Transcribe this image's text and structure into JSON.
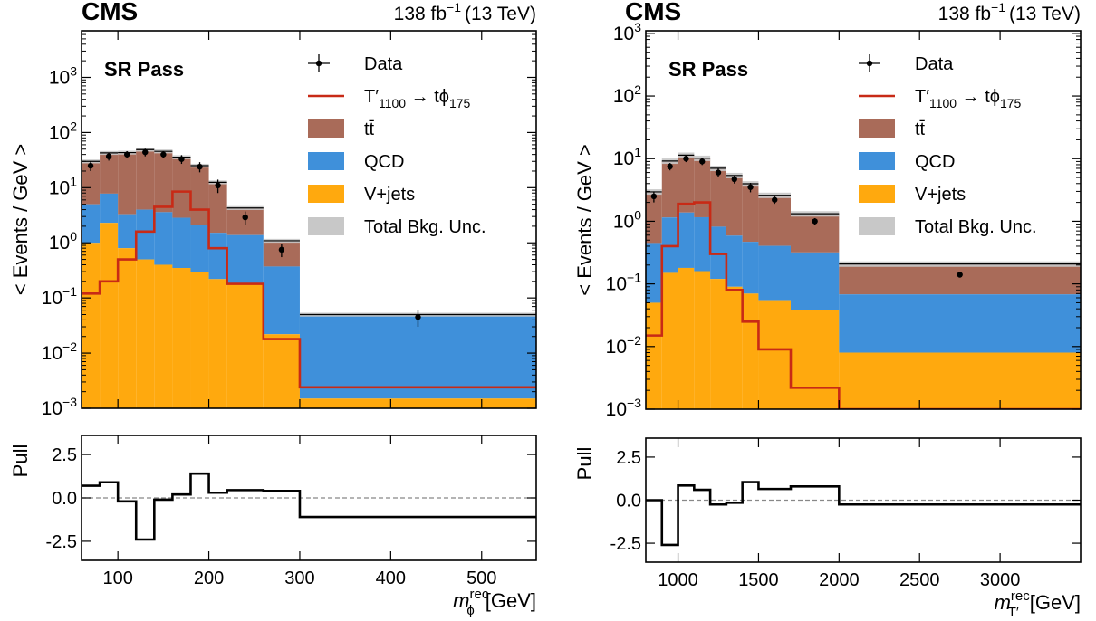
{
  "experiment": "CMS",
  "luminosity_label": "138 fb",
  "luminosity_exp": "−1",
  "energy_label": "(13 TeV)",
  "region_label": "SR Pass",
  "legend": [
    {
      "key": "data",
      "label": "Data"
    },
    {
      "key": "signal",
      "label_main": "T′",
      "label_sub": "1100",
      "label_arrow": " → tϕ",
      "label_sub2": "175"
    },
    {
      "key": "ttbar",
      "label": "tt̄"
    },
    {
      "key": "qcd",
      "label": "QCD"
    },
    {
      "key": "vjets",
      "label": "V+jets"
    },
    {
      "key": "unc",
      "label": "Total Bkg. Unc."
    }
  ],
  "colors": {
    "ttbar": "#a96b59",
    "qcd": "#3f90da",
    "vjets": "#ffa90e",
    "unc": "#c8c8c8",
    "signal": "#c82a16",
    "data": "#000000"
  },
  "chart_data": [
    {
      "type": "bar",
      "name": "left",
      "stacked": true,
      "log_y": true,
      "ylabel": "< Events / GeV >",
      "xlabel_sym": "m",
      "xlabel_sup": "rec",
      "xlabel_sub": "ϕ",
      "xlabel_unit": "[GeV]",
      "xlim": [
        60,
        560
      ],
      "ylim": [
        0.001,
        7000
      ],
      "yticks": [
        {
          "v": 0.001,
          "m": "10",
          "e": "−3"
        },
        {
          "v": 0.01,
          "m": "10",
          "e": "−2"
        },
        {
          "v": 0.1,
          "m": "10",
          "e": "−1"
        },
        {
          "v": 1,
          "m": "10",
          "e": "0"
        },
        {
          "v": 10,
          "m": "10",
          "e": "1"
        },
        {
          "v": 100,
          "m": "10",
          "e": "2"
        },
        {
          "v": 1000,
          "m": "10",
          "e": "3"
        }
      ],
      "xticks": [
        {
          "v": 100,
          "t": "100"
        },
        {
          "v": 200,
          "t": "200"
        },
        {
          "v": 300,
          "t": "300"
        },
        {
          "v": 400,
          "t": "400"
        },
        {
          "v": 500,
          "t": "500"
        }
      ],
      "bin_edges": [
        60,
        80,
        100,
        120,
        140,
        160,
        180,
        200,
        220,
        260,
        300,
        560
      ],
      "vjets": [
        1.0,
        2.3,
        0.8,
        0.5,
        0.4,
        0.35,
        0.3,
        0.22,
        0.18,
        0.022,
        0.0015
      ],
      "qcd": [
        4.0,
        5.5,
        2.5,
        3.5,
        3.2,
        2.5,
        1.8,
        1.3,
        1.2,
        0.35,
        0.048
      ],
      "ttbar": [
        25,
        35,
        40,
        45,
        42,
        33,
        23,
        11,
        2.9,
        0.72,
        0.0005
      ],
      "unc_frac": 0.08,
      "signal": [
        0.12,
        0.2,
        0.5,
        1.6,
        4.5,
        8.5,
        4.0,
        0.8,
        0.18,
        0.018,
        0.0024
      ],
      "data_x": [
        70,
        90,
        110,
        130,
        150,
        170,
        190,
        210,
        240,
        280,
        430
      ],
      "data_y": [
        25,
        37,
        40,
        44,
        40,
        33,
        24,
        11,
        2.9,
        0.75,
        0.045
      ],
      "data_err": [
        5,
        6,
        6,
        7,
        6,
        6,
        5,
        3,
        0.8,
        0.2,
        0.015
      ],
      "pull": [
        0.7,
        0.9,
        -0.2,
        -2.4,
        -0.1,
        0.2,
        1.4,
        0.3,
        0.45,
        0.4,
        -1.1
      ],
      "pull_ylabel": "Pull",
      "pull_ylim": [
        -3.6,
        3.6
      ],
      "pull_yticks": [
        {
          "v": -2.5,
          "t": "-2.5"
        },
        {
          "v": 0.0,
          "t": "0.0"
        },
        {
          "v": 2.5,
          "t": "2.5"
        }
      ]
    },
    {
      "type": "bar",
      "name": "right",
      "stacked": true,
      "log_y": true,
      "ylabel": "< Events / GeV >",
      "xlabel_sym": "m",
      "xlabel_sup": "rec",
      "xlabel_sub": "T′",
      "xlabel_unit": "[GeV]",
      "xlim": [
        800,
        3500
      ],
      "ylim": [
        0.001,
        1100
      ],
      "yticks": [
        {
          "v": 0.001,
          "m": "10",
          "e": "−3"
        },
        {
          "v": 0.01,
          "m": "10",
          "e": "−2"
        },
        {
          "v": 0.1,
          "m": "10",
          "e": "−1"
        },
        {
          "v": 1,
          "m": "10",
          "e": "0"
        },
        {
          "v": 10,
          "m": "10",
          "e": "1"
        },
        {
          "v": 100,
          "m": "10",
          "e": "2"
        },
        {
          "v": 1000,
          "m": "10",
          "e": "3"
        }
      ],
      "xticks": [
        {
          "v": 1000,
          "t": "1000"
        },
        {
          "v": 1500,
          "t": "1500"
        },
        {
          "v": 2000,
          "t": "2000"
        },
        {
          "v": 2500,
          "t": "2500"
        },
        {
          "v": 3000,
          "t": "3000"
        }
      ],
      "bin_edges": [
        800,
        900,
        1000,
        1100,
        1200,
        1300,
        1400,
        1500,
        1700,
        2000,
        3500
      ],
      "vjets": [
        0.05,
        0.15,
        0.18,
        0.16,
        0.12,
        0.09,
        0.07,
        0.055,
        0.038,
        0.008
      ],
      "qcd": [
        0.4,
        1.0,
        1.2,
        1.0,
        0.7,
        0.5,
        0.4,
        0.35,
        0.28,
        0.06
      ],
      "ttbar": [
        2.5,
        8.0,
        10.0,
        9.0,
        6.2,
        4.8,
        3.5,
        2.2,
        1.0,
        0.14
      ],
      "unc_frac": 0.1,
      "signal": [
        0.015,
        0.4,
        1.9,
        2.0,
        0.3,
        0.08,
        0.025,
        0.009,
        0.0022,
        0.0005
      ],
      "data_x": [
        850,
        950,
        1050,
        1150,
        1250,
        1350,
        1450,
        1600,
        1850,
        2750
      ],
      "data_y": [
        2.5,
        7.5,
        10.0,
        9.0,
        6.0,
        4.7,
        3.5,
        2.2,
        1.0,
        0.14
      ],
      "data_err": [
        0.5,
        1.0,
        1.2,
        1.1,
        0.9,
        0.7,
        0.6,
        0.3,
        0.12,
        0.01
      ],
      "pull": [
        0.0,
        -2.6,
        0.85,
        0.6,
        -0.25,
        -0.15,
        1.05,
        0.65,
        0.8,
        -0.25
      ],
      "pull_ylabel": "Pull",
      "pull_ylim": [
        -3.6,
        3.6
      ],
      "pull_yticks": [
        {
          "v": -2.5,
          "t": "-2.5"
        },
        {
          "v": 0.0,
          "t": "0.0"
        },
        {
          "v": 2.5,
          "t": "2.5"
        }
      ]
    }
  ]
}
